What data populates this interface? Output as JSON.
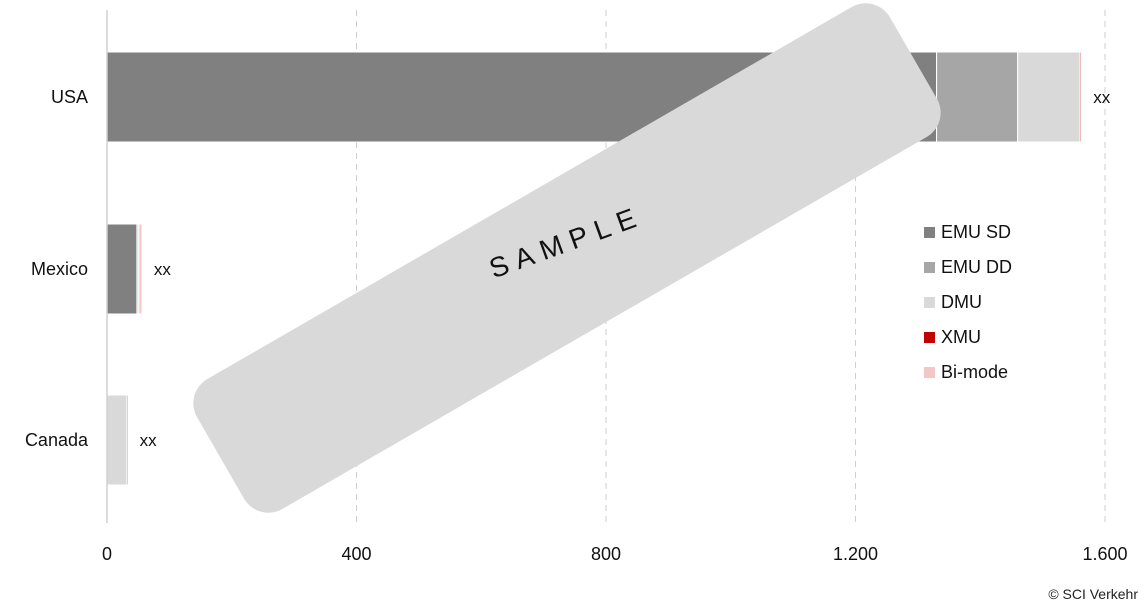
{
  "chart_data": {
    "type": "bar",
    "orientation": "horizontal",
    "stacked": true,
    "categories": [
      "USA",
      "Mexico",
      "Canada"
    ],
    "series": [
      {
        "name": "EMU SD",
        "values": [
          1330,
          48,
          0
        ],
        "color": "#808080"
      },
      {
        "name": "EMU DD",
        "values": [
          130,
          0,
          0
        ],
        "color": "#a6a6a6"
      },
      {
        "name": "DMU",
        "values": [
          100,
          3,
          32
        ],
        "color": "#d9d9d9"
      },
      {
        "name": "XMU",
        "values": [
          2,
          0,
          1
        ],
        "color": "#c00000"
      },
      {
        "name": "Bi-mode",
        "values": [
          0,
          5,
          0
        ],
        "color": "#f4c7c7"
      }
    ],
    "data_labels": [
      "xx",
      "xx",
      "xx"
    ],
    "x_ticks": [
      "0",
      "400",
      "800",
      "1.200",
      "1.600"
    ],
    "x_tick_values": [
      0,
      400,
      800,
      1200,
      1600
    ],
    "xlim": [
      0,
      1600
    ],
    "grid": "vertical dashed",
    "legend_position": "right"
  },
  "watermark": "SAMPLE",
  "copyright": "© SCI Verkehr"
}
